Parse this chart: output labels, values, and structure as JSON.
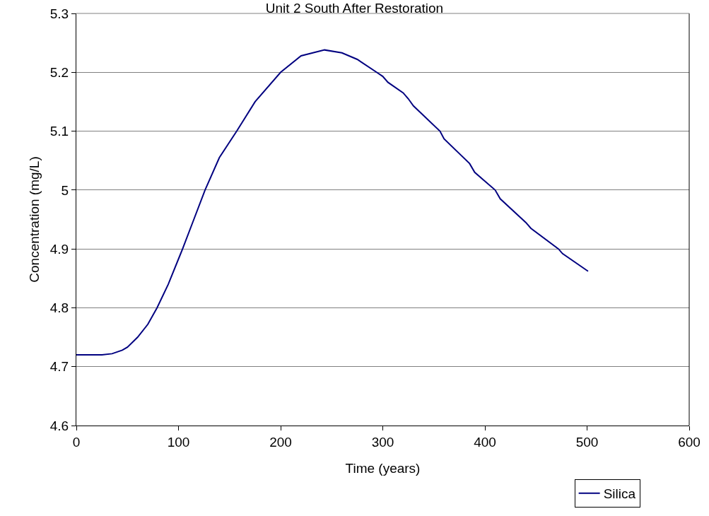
{
  "chart_data": {
    "type": "line",
    "title": "Unit 2 South After Restoration",
    "xlabel": "Time (years)",
    "ylabel": "Concentration (mg/L)",
    "xlim": [
      0,
      600
    ],
    "xticks": [
      0,
      100,
      200,
      300,
      400,
      500,
      600
    ],
    "ylim": [
      4.6,
      5.3
    ],
    "yticks": [
      4.6,
      4.7,
      4.8,
      4.9,
      {
        "value": 5,
        "label": "5"
      },
      5.1,
      5.2,
      5.3
    ],
    "grid": "y",
    "legend": "bottom right",
    "marker": "none",
    "line_style": "solid",
    "series": [
      {
        "name": "Silica",
        "color": "#000080",
        "x": [
          0,
          10,
          20,
          25,
          35,
          45,
          50,
          60,
          70,
          79,
          90,
          104,
          115,
          126,
          140,
          157,
          175,
          200,
          220,
          243,
          260,
          275,
          294,
          300,
          305,
          320,
          325,
          330,
          356,
          360,
          385,
          390,
          410,
          415,
          440,
          445,
          472,
          476,
          501
        ],
        "values": [
          4.72,
          4.72,
          4.72,
          4.72,
          4.722,
          4.728,
          4.733,
          4.75,
          4.772,
          4.8,
          4.84,
          4.9,
          4.95,
          5.0,
          5.055,
          5.1,
          5.15,
          5.2,
          5.228,
          5.238,
          5.233,
          5.222,
          5.2,
          5.193,
          5.183,
          5.165,
          5.155,
          5.143,
          5.1,
          5.087,
          5.045,
          5.03,
          5.0,
          4.985,
          4.945,
          4.935,
          4.9,
          4.892,
          4.862
        ]
      }
    ]
  }
}
